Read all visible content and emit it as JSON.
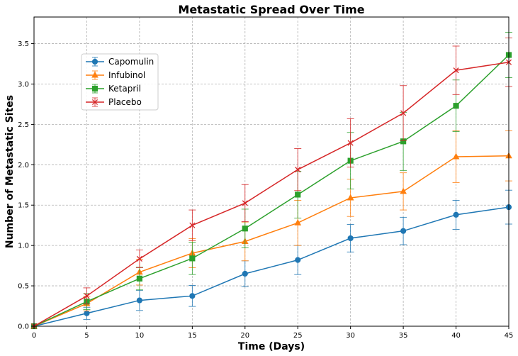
{
  "chart_data": {
    "type": "line",
    "title": "Metastatic Spread Over Time",
    "xlabel": "Time (Days)",
    "ylabel": "Number of Metastatic Sites",
    "xlim": [
      0,
      45
    ],
    "ylim": [
      0,
      3.83
    ],
    "x_ticks": [
      0,
      5,
      10,
      15,
      20,
      25,
      30,
      35,
      40,
      45
    ],
    "y_ticks": [
      0.0,
      0.5,
      1.0,
      1.5,
      2.0,
      2.5,
      3.0,
      3.5
    ],
    "y_tick_labels": [
      "0.0",
      "0.5",
      "1.0",
      "1.5",
      "2.0",
      "2.5",
      "3.0",
      "3.5"
    ],
    "grid": true,
    "legend_position": "upper-left",
    "x": [
      0,
      5,
      10,
      15,
      20,
      25,
      30,
      35,
      40,
      45
    ],
    "series": [
      {
        "name": "Capomulin",
        "color": "#1f77b4",
        "marker": "circle",
        "values": [
          0.0,
          0.16,
          0.32,
          0.375,
          0.65,
          0.82,
          1.09,
          1.18,
          1.38,
          1.475
        ],
        "errors": [
          0.0,
          0.075,
          0.125,
          0.13,
          0.16,
          0.18,
          0.17,
          0.17,
          0.18,
          0.21
        ]
      },
      {
        "name": "Infubinol",
        "color": "#ff7f0e",
        "marker": "triangle",
        "values": [
          0.0,
          0.28,
          0.67,
          0.905,
          1.05,
          1.28,
          1.59,
          1.67,
          2.1,
          2.11
        ],
        "errors": [
          0.0,
          0.09,
          0.16,
          0.18,
          0.24,
          0.28,
          0.23,
          0.23,
          0.32,
          0.31
        ]
      },
      {
        "name": "Ketapril",
        "color": "#2ca02c",
        "marker": "square",
        "values": [
          0.0,
          0.305,
          0.59,
          0.84,
          1.21,
          1.63,
          2.05,
          2.29,
          2.73,
          3.36
        ],
        "errors": [
          0.0,
          0.1,
          0.14,
          0.2,
          0.24,
          0.29,
          0.35,
          0.36,
          0.32,
          0.28
        ]
      },
      {
        "name": "Placebo",
        "color": "#d62728",
        "marker": "x",
        "values": [
          0.0,
          0.375,
          0.835,
          1.25,
          1.525,
          1.94,
          2.27,
          2.64,
          3.17,
          3.27
        ],
        "errors": [
          0.0,
          0.1,
          0.11,
          0.19,
          0.23,
          0.26,
          0.3,
          0.34,
          0.3,
          0.3
        ]
      }
    ]
  }
}
